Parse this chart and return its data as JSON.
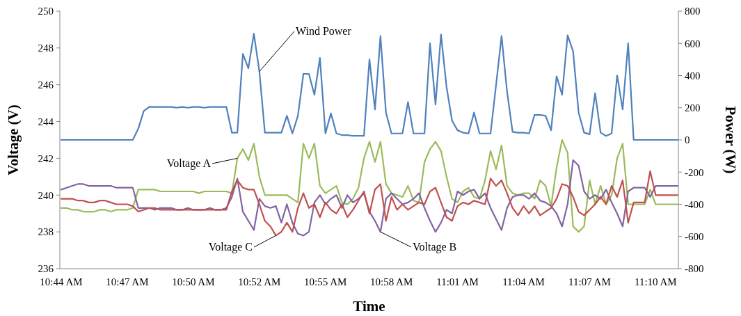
{
  "chart_data": {
    "type": "line",
    "xlabel": "Time",
    "ylabel": "Voltage (V)",
    "y2label": "Power (W)",
    "categories": [
      "10:44 AM",
      null,
      null,
      null,
      null,
      null,
      null,
      null,
      null,
      null,
      null,
      null,
      "10:47 AM",
      null,
      null,
      null,
      null,
      null,
      null,
      null,
      null,
      null,
      null,
      null,
      "10:50 AM",
      null,
      null,
      null,
      null,
      null,
      null,
      null,
      null,
      null,
      null,
      null,
      "10:52 AM",
      null,
      null,
      null,
      null,
      null,
      null,
      null,
      null,
      null,
      null,
      null,
      "10:55 AM",
      null,
      null,
      null,
      null,
      null,
      null,
      null,
      null,
      null,
      null,
      null,
      "10:58 AM",
      null,
      null,
      null,
      null,
      null,
      null,
      null,
      null,
      null,
      null,
      null,
      "11:01 AM",
      null,
      null,
      null,
      null,
      null,
      null,
      null,
      null,
      null,
      null,
      null,
      "11:04 AM",
      null,
      null,
      null,
      null,
      null,
      null,
      null,
      null,
      null,
      null,
      null,
      "11:07 AM",
      null,
      null,
      null,
      null,
      null,
      null,
      null,
      null,
      null,
      null,
      null,
      "11:10 AM",
      null,
      null,
      null,
      null
    ],
    "ylim": [
      236,
      250
    ],
    "yticks": [
      236,
      238,
      240,
      242,
      244,
      246,
      248,
      250
    ],
    "y2lim": [
      -800,
      800
    ],
    "y2ticks": [
      -800,
      -600,
      -400,
      -200,
      0,
      200,
      400,
      600,
      800
    ],
    "grid": false,
    "line_style": "solid",
    "marker": "none",
    "series": [
      {
        "name": "Wind Power",
        "color": "#4f81bd",
        "axis": "y2",
        "values": [
          0,
          0,
          0,
          0,
          0,
          0,
          0,
          0,
          0,
          0,
          0,
          0,
          0,
          0,
          70,
          180,
          205,
          205,
          205,
          205,
          205,
          200,
          205,
          200,
          205,
          205,
          200,
          205,
          205,
          205,
          205,
          45,
          45,
          535,
          445,
          660,
          425,
          45,
          45,
          45,
          45,
          150,
          40,
          150,
          410,
          410,
          280,
          510,
          40,
          165,
          40,
          30,
          30,
          25,
          25,
          25,
          500,
          190,
          645,
          170,
          40,
          40,
          40,
          235,
          40,
          40,
          40,
          600,
          220,
          655,
          330,
          120,
          60,
          45,
          40,
          170,
          40,
          40,
          40,
          340,
          645,
          300,
          50,
          45,
          45,
          40,
          155,
          155,
          150,
          60,
          395,
          280,
          650,
          550,
          170,
          45,
          35,
          290,
          45,
          25,
          40,
          400,
          190,
          600,
          0,
          0,
          0,
          0,
          0,
          0,
          0,
          0,
          0
        ]
      },
      {
        "name": "Voltage A",
        "color": "#9bbb59",
        "values": [
          239.3,
          239.3,
          239.2,
          239.2,
          239.1,
          239.1,
          239.1,
          239.2,
          239.2,
          239.1,
          239.2,
          239.2,
          239.2,
          239.3,
          240.3,
          240.3,
          240.3,
          240.3,
          240.2,
          240.2,
          240.2,
          240.2,
          240.2,
          240.2,
          240.2,
          240.1,
          240.2,
          240.2,
          240.2,
          240.2,
          240.2,
          240.1,
          242.0,
          242.5,
          241.9,
          242.8,
          241.0,
          240.0,
          240.0,
          240.0,
          240.0,
          240.0,
          239.8,
          239.6,
          242.8,
          242.0,
          242.8,
          240.5,
          240.1,
          240.3,
          240.5,
          239.6,
          239.5,
          239.8,
          240.4,
          242.0,
          242.9,
          241.8,
          242.9,
          240.6,
          240.1,
          240.0,
          239.9,
          240.5,
          239.7,
          239.6,
          241.8,
          242.5,
          242.9,
          242.4,
          241.0,
          239.8,
          239.6,
          240.2,
          240.4,
          239.9,
          239.8,
          240.8,
          242.4,
          241.4,
          242.7,
          240.5,
          240.1,
          240.0,
          240.1,
          240.1,
          239.8,
          240.8,
          240.5,
          239.4,
          241.5,
          243.0,
          242.3,
          238.3,
          238.0,
          238.3,
          240.8,
          239.5,
          240.5,
          239.5,
          240.0,
          242.0,
          242.8,
          239.5,
          239.5,
          239.5,
          239.5,
          240.3,
          239.5,
          239.5,
          239.5,
          239.5,
          239.5
        ]
      },
      {
        "name": "Voltage B",
        "color": "#8064a2",
        "values": [
          240.3,
          240.4,
          240.5,
          240.6,
          240.6,
          240.5,
          240.5,
          240.5,
          240.5,
          240.5,
          240.4,
          240.4,
          240.4,
          240.4,
          239.3,
          239.3,
          239.3,
          239.2,
          239.3,
          239.3,
          239.3,
          239.2,
          239.2,
          239.3,
          239.2,
          239.2,
          239.2,
          239.3,
          239.2,
          239.2,
          239.3,
          239.9,
          240.9,
          239.1,
          238.6,
          238.1,
          239.8,
          239.4,
          239.3,
          239.4,
          238.5,
          239.5,
          238.5,
          237.9,
          237.8,
          238.0,
          239.6,
          240.0,
          239.5,
          239.8,
          240.0,
          239.3,
          240.0,
          239.6,
          239.8,
          240.1,
          239.1,
          238.6,
          238.0,
          239.8,
          240.1,
          239.8,
          239.5,
          239.6,
          239.8,
          240.1,
          239.3,
          238.6,
          238.0,
          238.5,
          239.2,
          239.0,
          240.2,
          240.0,
          240.2,
          240.3,
          239.8,
          240.1,
          239.3,
          238.7,
          238.1,
          239.3,
          239.9,
          240.0,
          240.0,
          239.8,
          240.1,
          239.7,
          239.6,
          239.4,
          239.0,
          238.3,
          239.5,
          241.9,
          241.6,
          240.2,
          239.8,
          240.0,
          239.8,
          240.3,
          239.6,
          239.0,
          238.3,
          240.2,
          240.4,
          240.4,
          240.4,
          239.9,
          240.5,
          240.5,
          240.5,
          240.5,
          240.5
        ]
      },
      {
        "name": "Voltage C",
        "color": "#c0504d",
        "values": [
          239.8,
          239.8,
          239.8,
          239.7,
          239.7,
          239.6,
          239.6,
          239.7,
          239.7,
          239.6,
          239.5,
          239.5,
          239.5,
          239.4,
          239.1,
          239.2,
          239.3,
          239.3,
          239.2,
          239.2,
          239.2,
          239.2,
          239.2,
          239.2,
          239.2,
          239.2,
          239.2,
          239.2,
          239.2,
          239.2,
          239.2,
          240.2,
          240.8,
          240.4,
          240.3,
          240.3,
          239.5,
          238.6,
          238.3,
          237.8,
          238.0,
          238.5,
          238.0,
          239.3,
          240.1,
          239.3,
          239.5,
          238.8,
          239.6,
          239.2,
          239.0,
          239.5,
          238.8,
          239.2,
          239.7,
          240.2,
          239.0,
          240.3,
          240.6,
          238.6,
          239.9,
          239.2,
          239.5,
          239.2,
          239.4,
          239.6,
          239.5,
          240.2,
          240.4,
          239.6,
          238.8,
          238.6,
          239.4,
          239.6,
          239.5,
          239.7,
          239.6,
          239.5,
          240.9,
          240.5,
          240.8,
          240.1,
          239.3,
          238.9,
          239.4,
          239.0,
          239.4,
          238.9,
          239.1,
          239.3,
          239.8,
          240.6,
          240.5,
          239.9,
          239.1,
          238.9,
          239.2,
          239.5,
          239.9,
          239.5,
          240.5,
          239.9,
          240.8,
          238.5,
          239.6,
          239.6,
          239.6,
          241.3,
          240.0,
          240.0,
          240.0,
          240.0,
          240.0
        ]
      }
    ]
  }
}
